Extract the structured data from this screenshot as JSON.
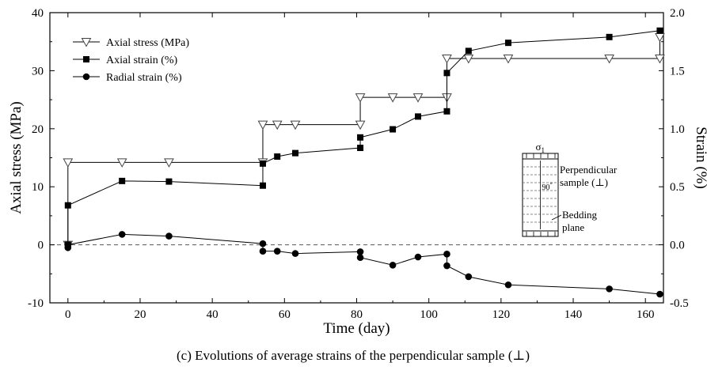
{
  "chart_data": {
    "type": "line",
    "xlabel": "Time (day)",
    "ylabel_left": "Axial stress (MPa)",
    "ylabel_right": "Strain (%)",
    "caption": "(c) Evolutions of average strains of the perpendicular sample (⊥)",
    "xlim": [
      -5,
      165
    ],
    "ylim_left": [
      -10,
      40
    ],
    "ylim_right": [
      -0.5,
      2.0
    ],
    "x_ticks": [
      0,
      20,
      40,
      60,
      80,
      100,
      120,
      140,
      160
    ],
    "y_left_ticks": [
      -10,
      0,
      10,
      20,
      30,
      40
    ],
    "y_right_ticks": [
      "-0.5",
      "0.0",
      "0.5",
      "1.0",
      "1.5",
      "2.0"
    ],
    "zero_reference_line": true,
    "legend_position": "top-left",
    "series": [
      {
        "name": "Axial stress (MPa)",
        "axis": "left",
        "marker": "triangle-down-open",
        "step": true,
        "points": [
          [
            0,
            0
          ],
          [
            0,
            14.2
          ],
          [
            15,
            14.2
          ],
          [
            28,
            14.2
          ],
          [
            54,
            14.2
          ],
          [
            54,
            20.7
          ],
          [
            58,
            20.7
          ],
          [
            63,
            20.7
          ],
          [
            81,
            20.7
          ],
          [
            81,
            25.4
          ],
          [
            90,
            25.4
          ],
          [
            97,
            25.4
          ],
          [
            105,
            25.4
          ],
          [
            105,
            32.1
          ],
          [
            111,
            32.1
          ],
          [
            122,
            32.1
          ],
          [
            150,
            32.1
          ],
          [
            164,
            32.1
          ],
          [
            164,
            35.8
          ]
        ]
      },
      {
        "name": "Axial strain (%)",
        "axis": "right",
        "marker": "square-filled",
        "step": false,
        "points": [
          [
            0,
            0.0
          ],
          [
            0,
            0.34
          ],
          [
            15,
            0.55
          ],
          [
            28,
            0.545
          ],
          [
            54,
            0.51
          ],
          [
            54,
            0.7
          ],
          [
            58,
            0.76
          ],
          [
            63,
            0.79
          ],
          [
            81,
            0.835
          ],
          [
            81,
            0.925
          ],
          [
            90,
            0.995
          ],
          [
            97,
            1.105
          ],
          [
            105,
            1.15
          ],
          [
            105,
            1.48
          ],
          [
            111,
            1.67
          ],
          [
            122,
            1.74
          ],
          [
            150,
            1.79
          ],
          [
            164,
            1.845
          ]
        ]
      },
      {
        "name": "Radial strain (%)",
        "axis": "right",
        "marker": "circle-filled",
        "step": false,
        "points": [
          [
            0,
            -0.025
          ],
          [
            0,
            0.0
          ],
          [
            15,
            0.09
          ],
          [
            28,
            0.075
          ],
          [
            54,
            0.01
          ],
          [
            54,
            -0.055
          ],
          [
            58,
            -0.055
          ],
          [
            63,
            -0.075
          ],
          [
            81,
            -0.06
          ],
          [
            81,
            -0.11
          ],
          [
            90,
            -0.175
          ],
          [
            97,
            -0.105
          ],
          [
            105,
            -0.08
          ],
          [
            105,
            -0.18
          ],
          [
            111,
            -0.275
          ],
          [
            122,
            -0.345
          ],
          [
            150,
            -0.38
          ],
          [
            164,
            -0.425
          ]
        ]
      }
    ],
    "inset": {
      "sigma_label": "σ",
      "sigma_subscript": "1",
      "label_perpendicular": "Perpendicular",
      "label_sample": "sample (⊥)",
      "angle_label": "90",
      "angle_degree": "°",
      "label_bedding": "Bedding",
      "label_plane": "plane"
    }
  }
}
